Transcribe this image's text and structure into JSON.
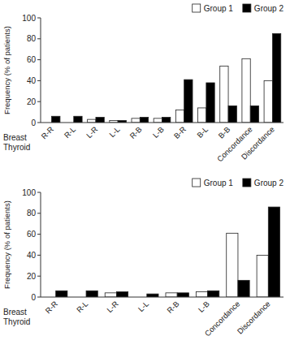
{
  "chart_data": [
    {
      "type": "bar",
      "categories": [
        "R-R",
        "R-L",
        "L-R",
        "L-L",
        "R-B",
        "L-B",
        "B-R",
        "B-L",
        "B-B",
        "Concordance",
        "Discordance"
      ],
      "series": [
        {
          "name": "Group 1",
          "color": "white",
          "values": [
            0,
            0,
            3,
            2,
            4,
            4,
            12,
            14,
            54,
            61,
            40
          ]
        },
        {
          "name": "Group 2",
          "color": "black",
          "values": [
            6,
            6,
            5,
            2,
            5,
            5,
            41,
            38,
            16,
            16,
            85
          ]
        }
      ],
      "ylabel": "Frequency (% of patients)",
      "annotations": [
        "Breast",
        "Thyroid"
      ],
      "ylim": [
        0,
        100
      ],
      "yticks": [
        0,
        20,
        40,
        60,
        80,
        100
      ],
      "grid": false,
      "legend": "upper right"
    },
    {
      "type": "bar",
      "categories": [
        "R-R",
        "R-L",
        "L-R",
        "L-L",
        "R-B",
        "L-B",
        "Concordance",
        "Discordance"
      ],
      "series": [
        {
          "name": "Group 1",
          "color": "white",
          "values": [
            0,
            0,
            4,
            0,
            4,
            5,
            61,
            40
          ]
        },
        {
          "name": "Group 2",
          "color": "black",
          "values": [
            6,
            6,
            5,
            3,
            4,
            6,
            16,
            86
          ]
        }
      ],
      "ylabel": "Frequency (% of patients)",
      "annotations": [
        "Breast",
        "Thyroid"
      ],
      "ylim": [
        0,
        100
      ],
      "yticks": [
        0,
        20,
        40,
        60,
        80,
        100
      ],
      "grid": false,
      "legend": "upper right"
    }
  ]
}
